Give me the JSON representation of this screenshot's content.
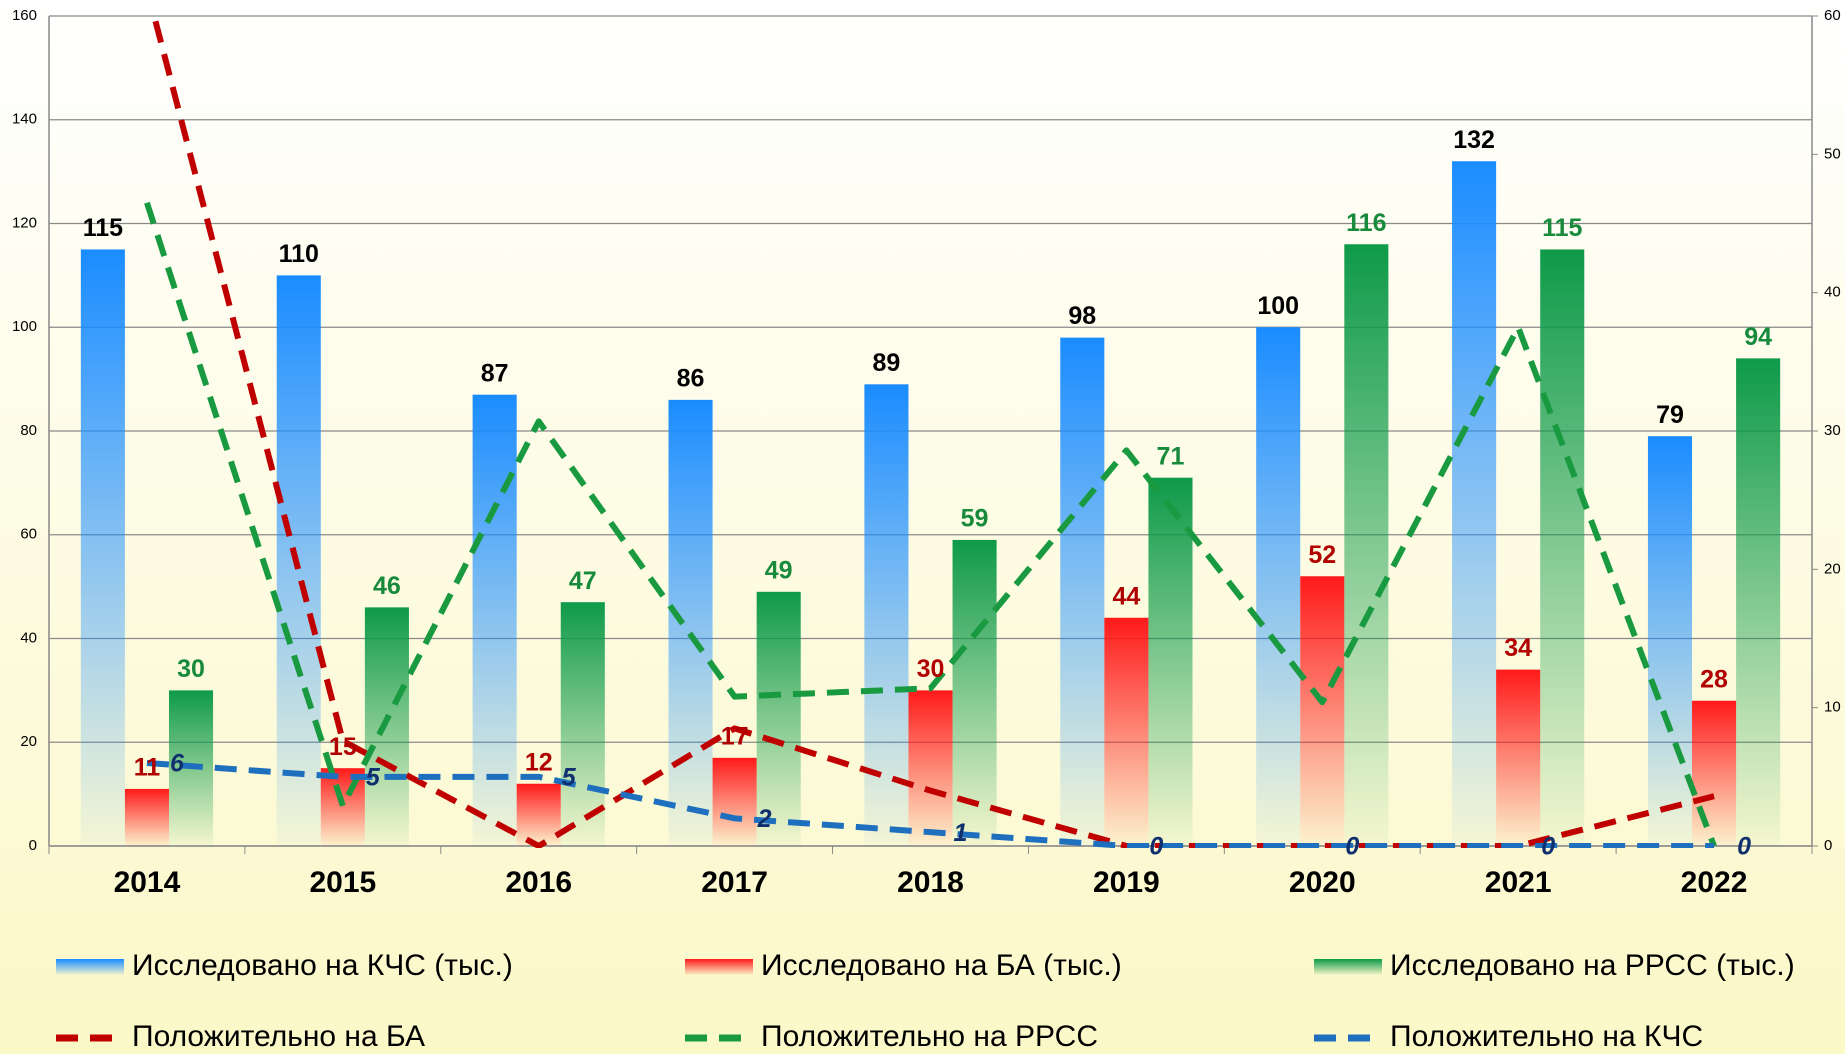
{
  "chart_data": {
    "type": "bar",
    "categories": [
      "2014",
      "2015",
      "2016",
      "2017",
      "2018",
      "2019",
      "2020",
      "2021",
      "2022"
    ],
    "series": [
      {
        "name": "Исследовано на КЧС (тыс.)",
        "type": "bar",
        "color": "#1a8cff",
        "label_color": "#000000",
        "values": [
          115,
          110,
          87,
          86,
          89,
          98,
          100,
          132,
          79
        ]
      },
      {
        "name": "Исследовано на БА (тыс.)",
        "type": "bar",
        "color": "#ff1a1a",
        "label_color": "#b00000",
        "values": [
          11,
          15,
          12,
          17,
          30,
          44,
          52,
          34,
          28
        ]
      },
      {
        "name": "Исследовано на РРСС (тыс.)",
        "type": "bar",
        "color": "#0e9a48",
        "label_color": "#178a3c",
        "values": [
          30,
          46,
          47,
          49,
          59,
          71,
          116,
          115,
          94
        ]
      },
      {
        "name": "Положительно на БА",
        "type": "line",
        "axis": "y2",
        "color": "#c00000",
        "values": [
          62,
          7.6,
          0,
          8.5,
          4,
          0,
          0,
          0,
          3.6
        ]
      },
      {
        "name": "Положительно на РРСС",
        "type": "line",
        "axis": "y2",
        "color": "#1a9a40",
        "values": [
          46.5,
          2.9,
          30.7,
          10.8,
          11.4,
          28.6,
          10.4,
          37.5,
          0
        ]
      },
      {
        "name": "Положительно на КЧС",
        "type": "line",
        "axis": "y2",
        "color": "#1f6fbf",
        "label_color": "#0f2f6f",
        "values": [
          6,
          5,
          5,
          2,
          1,
          0,
          0,
          0,
          0
        ]
      }
    ],
    "ylim": [
      0,
      160
    ],
    "yticks": [
      0,
      20,
      40,
      60,
      80,
      100,
      120,
      140,
      160
    ],
    "y2lim": [
      0,
      60
    ],
    "y2ticks": [
      0,
      10,
      20,
      30,
      40,
      50,
      60
    ],
    "grid": true,
    "legend": "bottom"
  }
}
